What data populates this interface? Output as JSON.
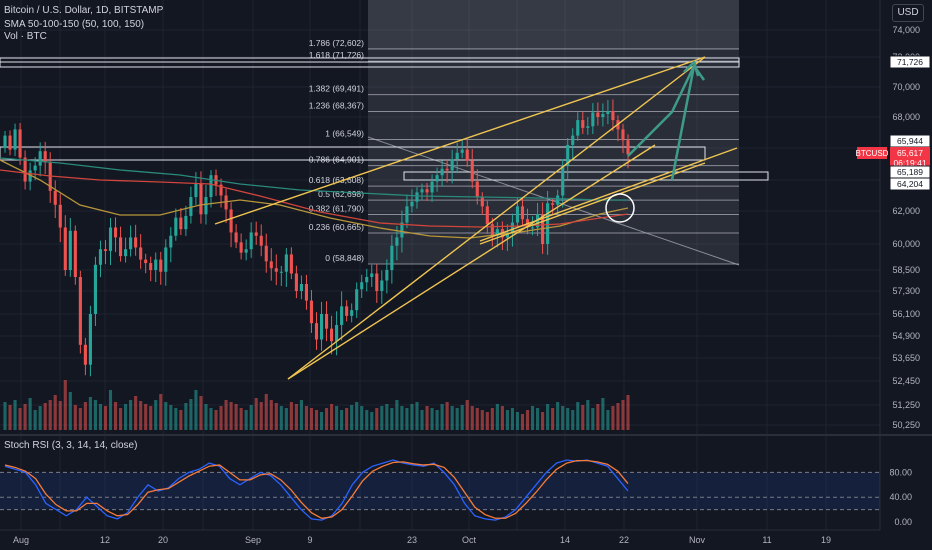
{
  "header": {
    "title": "Bitcoin / U.S. Dollar, 1D, BITSTAMP",
    "sma": "SMA 50-100-150 (50, 100, 150)",
    "vol": "Vol · BTC",
    "currency": "USD"
  },
  "stoch": {
    "title": "Stoch RSI (3, 3, 14, 14, close)",
    "ticks": [
      "80.00",
      "40.00",
      "0.00"
    ]
  },
  "chart_data": {
    "type": "candlestick",
    "price_axis_labels": [
      "74,000",
      "72,000",
      "70,000",
      "68,000",
      "66,000",
      "64,000",
      "62,000",
      "60,000",
      "58,500",
      "57,300",
      "56,100",
      "54,900",
      "53,650",
      "52,450",
      "51,250",
      "50,250"
    ],
    "date_axis_labels": [
      "Aug",
      "12",
      "20",
      "Sep",
      "9",
      "23",
      "Oct",
      "14",
      "22",
      "Nov",
      "11",
      "19"
    ],
    "fib_levels": [
      {
        "label": "1.786 (72,602)",
        "price": 72602
      },
      {
        "label": "1.618 (71,726)",
        "price": 71726
      },
      {
        "label": "1.382 (69,491)",
        "price": 69491
      },
      {
        "label": "1.236 (68,367)",
        "price": 68367
      },
      {
        "label": "1 (66,549)",
        "price": 66549
      },
      {
        "label": "0.786 (64,901)",
        "price": 64901
      },
      {
        "label": "0.618 (63,608)",
        "price": 63608
      },
      {
        "label": "0.5 (62,698)",
        "price": 62698
      },
      {
        "label": "0.382 (61,790)",
        "price": 61790
      },
      {
        "label": "0.236 (60,665)",
        "price": 60665
      },
      {
        "label": "0 (58,848)",
        "price": 58848
      }
    ],
    "price_tags": [
      {
        "text": "71,726",
        "kind": "box"
      },
      {
        "text": "65,944",
        "kind": "box"
      },
      {
        "text": "BTCUSD",
        "kind": "symbol"
      },
      {
        "text": "65,617",
        "kind": "current"
      },
      {
        "text": "06:19:41",
        "kind": "current"
      },
      {
        "text": "65,189",
        "kind": "box"
      },
      {
        "text": "64,204",
        "kind": "box"
      }
    ],
    "stoch_levels": [
      80,
      40,
      20
    ],
    "colors": {
      "up": "#26a69a",
      "down": "#ef5350",
      "fib": "#b2b5be",
      "channel": "#f0c451",
      "sma50": "#b8963a",
      "sma100": "#d0463c",
      "sma150": "#2a8a7c",
      "arrow": "#3e9b8a",
      "stoch_k": "#2962ff",
      "stoch_d": "#f57c3b"
    }
  }
}
